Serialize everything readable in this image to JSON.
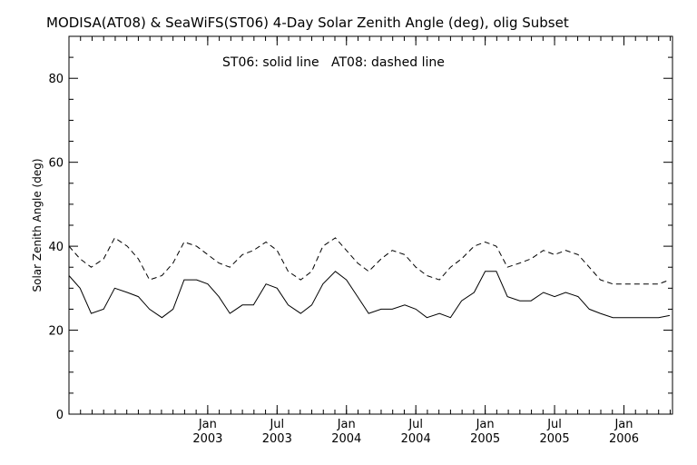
{
  "chart_data": {
    "type": "line",
    "title": "MODISA(AT08) & SeaWiFS(ST06) 4-Day Solar Zenith Angle (deg), olig Subset",
    "annotation": "ST06: solid line   AT08: dashed line",
    "ylabel": "Solar Zenith Angle (deg)",
    "xlabel": "",
    "xlim": [
      2002.0,
      2006.35
    ],
    "ylim": [
      0,
      90
    ],
    "y_ticks": [
      0,
      20,
      40,
      60,
      80
    ],
    "y_tick_labels": [
      "0",
      "20",
      "40",
      "60",
      "80"
    ],
    "x_ticks": [
      {
        "value": 2003.0,
        "month": "Jan",
        "year": "2003"
      },
      {
        "value": 2003.5,
        "month": "Jul",
        "year": "2003"
      },
      {
        "value": 2004.0,
        "month": "Jan",
        "year": "2004"
      },
      {
        "value": 2004.5,
        "month": "Jul",
        "year": "2004"
      },
      {
        "value": 2005.0,
        "month": "Jan",
        "year": "2005"
      },
      {
        "value": 2005.5,
        "month": "Jul",
        "year": "2005"
      },
      {
        "value": 2006.0,
        "month": "Jan",
        "year": "2006"
      }
    ],
    "series": [
      {
        "name": "ST06",
        "style": "solid",
        "x": [
          2002.0,
          2002.08,
          2002.16,
          2002.25,
          2002.33,
          2002.42,
          2002.5,
          2002.58,
          2002.67,
          2002.75,
          2002.83,
          2002.92,
          2003.0,
          2003.08,
          2003.16,
          2003.25,
          2003.33,
          2003.42,
          2003.5,
          2003.58,
          2003.67,
          2003.75,
          2003.83,
          2003.92,
          2004.0,
          2004.08,
          2004.16,
          2004.25,
          2004.33,
          2004.42,
          2004.5,
          2004.58,
          2004.67,
          2004.75,
          2004.83,
          2004.92,
          2005.0,
          2005.08,
          2005.16,
          2005.25,
          2005.33,
          2005.42,
          2005.5,
          2005.58,
          2005.67,
          2005.75,
          2005.83,
          2005.92,
          2006.0,
          2006.08,
          2006.16,
          2006.25,
          2006.33
        ],
        "values": [
          33,
          30,
          24,
          25,
          30,
          29,
          28,
          25,
          23,
          25,
          32,
          32,
          31,
          28,
          24,
          26,
          26,
          31,
          30,
          26,
          24,
          26,
          31,
          34,
          32,
          28,
          24,
          25,
          25,
          26,
          25,
          23,
          24,
          23,
          27,
          29,
          34,
          34,
          28,
          27,
          27,
          29,
          28,
          29,
          28,
          25,
          24,
          23,
          23,
          23,
          23,
          23,
          23.5
        ]
      },
      {
        "name": "AT08",
        "style": "dashed",
        "x": [
          2002.0,
          2002.08,
          2002.16,
          2002.25,
          2002.33,
          2002.42,
          2002.5,
          2002.58,
          2002.67,
          2002.75,
          2002.83,
          2002.92,
          2003.0,
          2003.08,
          2003.16,
          2003.25,
          2003.33,
          2003.42,
          2003.5,
          2003.58,
          2003.67,
          2003.75,
          2003.83,
          2003.92,
          2004.0,
          2004.08,
          2004.16,
          2004.25,
          2004.33,
          2004.42,
          2004.5,
          2004.58,
          2004.67,
          2004.75,
          2004.83,
          2004.92,
          2005.0,
          2005.08,
          2005.16,
          2005.25,
          2005.33,
          2005.42,
          2005.5,
          2005.58,
          2005.67,
          2005.75,
          2005.83,
          2005.92,
          2006.0,
          2006.08,
          2006.16,
          2006.25,
          2006.33
        ],
        "values": [
          40,
          37,
          35,
          37,
          42,
          40,
          37,
          32,
          33,
          36,
          41,
          40,
          38,
          36,
          35,
          38,
          39,
          41,
          39,
          34,
          32,
          34,
          40,
          42,
          39,
          36,
          34,
          37,
          39,
          38,
          35,
          33,
          32,
          35,
          37,
          40,
          41,
          40,
          35,
          36,
          37,
          39,
          38,
          39,
          38,
          35,
          32,
          31,
          31,
          31,
          31,
          31,
          32
        ]
      }
    ],
    "grid": false,
    "legend": "none"
  }
}
